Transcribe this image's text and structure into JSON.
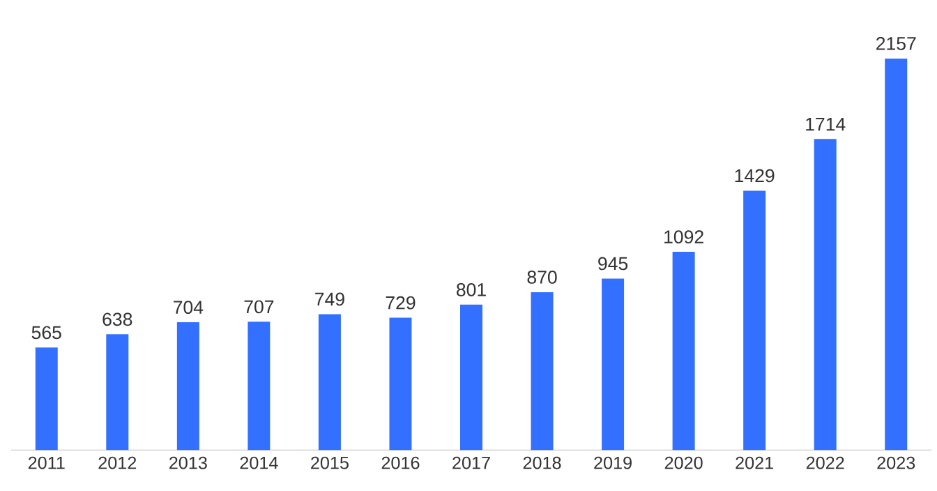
{
  "chart_data": {
    "type": "bar",
    "categories": [
      "2011",
      "2012",
      "2013",
      "2014",
      "2015",
      "2016",
      "2017",
      "2018",
      "2019",
      "2020",
      "2021",
      "2022",
      "2023"
    ],
    "values": [
      565,
      638,
      704,
      707,
      749,
      729,
      801,
      870,
      945,
      1092,
      1429,
      1714,
      2157
    ],
    "color": "#3370ff",
    "data_labels": true,
    "tick_labels": "x",
    "grid": false
  }
}
